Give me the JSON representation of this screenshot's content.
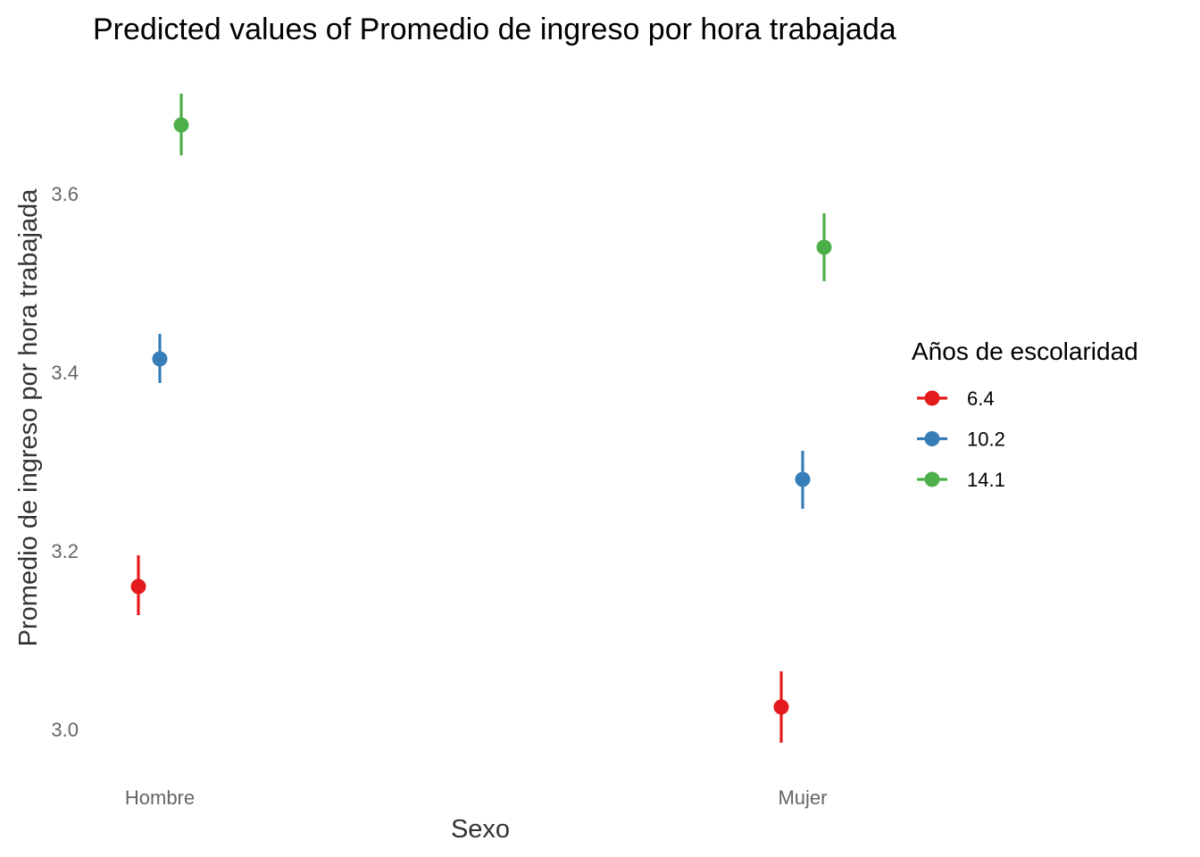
{
  "chart_data": {
    "type": "scatter",
    "title": "Predicted values of Promedio de ingreso por hora trabajada",
    "xlabel": "Sexo",
    "ylabel": "Promedio de ingreso por hora trabajada",
    "categories": [
      "Hombre",
      "Mujer"
    ],
    "y_ticks": [
      "3.0",
      "3.2",
      "3.4",
      "3.6"
    ],
    "ylim": [
      2.95,
      3.72
    ],
    "grid": false,
    "legend": {
      "title": "Años de escolaridad",
      "position": "right"
    },
    "series": [
      {
        "name": "6.4",
        "color": "#E41A1C",
        "values": [
          3.16,
          3.025
        ],
        "lower": [
          3.128,
          2.985
        ],
        "upper": [
          3.195,
          3.065
        ]
      },
      {
        "name": "10.2",
        "color": "#377EB8",
        "values": [
          3.415,
          3.28
        ],
        "lower": [
          3.388,
          3.247
        ],
        "upper": [
          3.443,
          3.312
        ]
      },
      {
        "name": "14.1",
        "color": "#4DAF4A",
        "values": [
          3.677,
          3.54
        ],
        "lower": [
          3.643,
          3.502
        ],
        "upper": [
          3.712,
          3.578
        ]
      }
    ]
  }
}
